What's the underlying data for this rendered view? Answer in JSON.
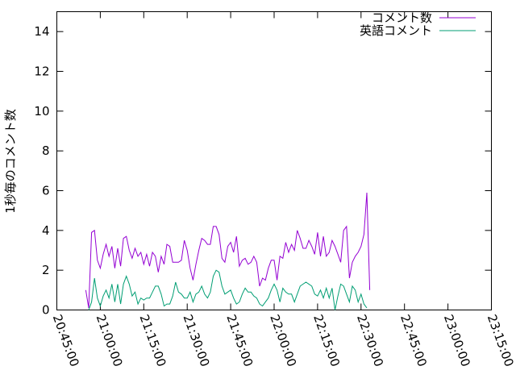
{
  "chart_data": {
    "type": "line",
    "title": "",
    "xlabel": "",
    "ylabel": "1秒毎のコメント数",
    "x_ticks": [
      "20:45:00",
      "21:00:00",
      "21:15:00",
      "21:30:00",
      "21:45:00",
      "22:00:00",
      "22:15:00",
      "22:30:00",
      "22:45:00",
      "23:00:00",
      "23:15:00"
    ],
    "x_start_minutes": 1245,
    "x_step_minutes": 15,
    "x_range_minutes": [
      1245,
      1395
    ],
    "ylim": [
      0,
      15
    ],
    "y_ticks": [
      0,
      2,
      4,
      6,
      8,
      10,
      12,
      14
    ],
    "legend_position": "top-right",
    "grid": false,
    "series": [
      {
        "name": "コメント数",
        "color": "#9400d3",
        "points": [
          [
            1255,
            1.0
          ],
          [
            1256,
            0.1
          ],
          [
            1257,
            3.9
          ],
          [
            1258,
            4.0
          ],
          [
            1259,
            2.5
          ],
          [
            1260,
            2.1
          ],
          [
            1261,
            2.8
          ],
          [
            1262,
            3.3
          ],
          [
            1263,
            2.7
          ],
          [
            1264,
            3.2
          ],
          [
            1265,
            2.1
          ],
          [
            1266,
            3.1
          ],
          [
            1267,
            2.2
          ],
          [
            1268,
            3.6
          ],
          [
            1269,
            3.7
          ],
          [
            1270,
            3.0
          ],
          [
            1271,
            2.6
          ],
          [
            1272,
            3.1
          ],
          [
            1273,
            2.7
          ],
          [
            1274,
            2.9
          ],
          [
            1275,
            2.3
          ],
          [
            1276,
            2.8
          ],
          [
            1277,
            2.2
          ],
          [
            1278,
            2.9
          ],
          [
            1279,
            2.7
          ],
          [
            1280,
            1.9
          ],
          [
            1281,
            2.7
          ],
          [
            1282,
            2.3
          ],
          [
            1283,
            3.3
          ],
          [
            1284,
            3.2
          ],
          [
            1285,
            2.4
          ],
          [
            1286,
            2.4
          ],
          [
            1287,
            2.4
          ],
          [
            1288,
            2.5
          ],
          [
            1289,
            3.5
          ],
          [
            1290,
            3.0
          ],
          [
            1291,
            2.1
          ],
          [
            1292,
            1.5
          ],
          [
            1293,
            2.3
          ],
          [
            1294,
            3.0
          ],
          [
            1295,
            3.6
          ],
          [
            1296,
            3.5
          ],
          [
            1297,
            3.3
          ],
          [
            1298,
            3.3
          ],
          [
            1299,
            4.2
          ],
          [
            1300,
            4.2
          ],
          [
            1301,
            3.8
          ],
          [
            1302,
            2.6
          ],
          [
            1303,
            2.4
          ],
          [
            1304,
            3.2
          ],
          [
            1305,
            3.4
          ],
          [
            1306,
            2.9
          ],
          [
            1307,
            3.7
          ],
          [
            1308,
            2.2
          ],
          [
            1309,
            2.5
          ],
          [
            1310,
            2.6
          ],
          [
            1311,
            2.3
          ],
          [
            1312,
            2.4
          ],
          [
            1313,
            2.7
          ],
          [
            1314,
            2.4
          ],
          [
            1315,
            1.2
          ],
          [
            1316,
            1.6
          ],
          [
            1317,
            1.5
          ],
          [
            1318,
            2.1
          ],
          [
            1319,
            2.5
          ],
          [
            1320,
            2.5
          ],
          [
            1321,
            1.5
          ],
          [
            1322,
            2.7
          ],
          [
            1323,
            2.6
          ],
          [
            1324,
            3.4
          ],
          [
            1325,
            2.9
          ],
          [
            1326,
            3.3
          ],
          [
            1327,
            3.0
          ],
          [
            1328,
            4.0
          ],
          [
            1329,
            3.6
          ],
          [
            1330,
            3.1
          ],
          [
            1331,
            3.1
          ],
          [
            1332,
            3.5
          ],
          [
            1333,
            3.2
          ],
          [
            1334,
            2.8
          ],
          [
            1335,
            3.9
          ],
          [
            1336,
            2.7
          ],
          [
            1337,
            3.7
          ],
          [
            1338,
            2.7
          ],
          [
            1339,
            2.9
          ],
          [
            1340,
            3.5
          ],
          [
            1341,
            3.2
          ],
          [
            1342,
            2.8
          ],
          [
            1343,
            2.4
          ],
          [
            1344,
            4.0
          ],
          [
            1345,
            4.2
          ],
          [
            1346,
            1.6
          ],
          [
            1347,
            2.4
          ],
          [
            1348,
            2.7
          ],
          [
            1349,
            2.9
          ],
          [
            1350,
            3.2
          ],
          [
            1351,
            3.8
          ],
          [
            1352,
            5.9
          ],
          [
            1353,
            1.0
          ]
        ]
      },
      {
        "name": "英語コメント",
        "color": "#009e73",
        "points": [
          [
            1256,
            0.0
          ],
          [
            1257,
            0.4
          ],
          [
            1258,
            1.6
          ],
          [
            1259,
            0.6
          ],
          [
            1260,
            0.2
          ],
          [
            1261,
            0.7
          ],
          [
            1262,
            1.0
          ],
          [
            1263,
            0.6
          ],
          [
            1264,
            1.3
          ],
          [
            1265,
            0.4
          ],
          [
            1266,
            1.3
          ],
          [
            1267,
            0.3
          ],
          [
            1268,
            1.3
          ],
          [
            1269,
            1.7
          ],
          [
            1270,
            1.3
          ],
          [
            1271,
            0.7
          ],
          [
            1272,
            0.9
          ],
          [
            1273,
            0.3
          ],
          [
            1274,
            0.6
          ],
          [
            1275,
            0.5
          ],
          [
            1276,
            0.6
          ],
          [
            1277,
            0.6
          ],
          [
            1278,
            0.9
          ],
          [
            1279,
            1.2
          ],
          [
            1280,
            1.2
          ],
          [
            1281,
            0.8
          ],
          [
            1282,
            0.2
          ],
          [
            1283,
            0.3
          ],
          [
            1284,
            0.3
          ],
          [
            1285,
            0.7
          ],
          [
            1286,
            1.4
          ],
          [
            1287,
            0.9
          ],
          [
            1288,
            0.8
          ],
          [
            1289,
            0.6
          ],
          [
            1290,
            0.6
          ],
          [
            1291,
            0.9
          ],
          [
            1292,
            0.4
          ],
          [
            1293,
            0.8
          ],
          [
            1294,
            0.9
          ],
          [
            1295,
            1.2
          ],
          [
            1296,
            0.8
          ],
          [
            1297,
            0.6
          ],
          [
            1298,
            0.9
          ],
          [
            1299,
            1.7
          ],
          [
            1300,
            2.0
          ],
          [
            1301,
            1.9
          ],
          [
            1302,
            1.2
          ],
          [
            1303,
            0.8
          ],
          [
            1304,
            0.9
          ],
          [
            1305,
            1.0
          ],
          [
            1306,
            0.6
          ],
          [
            1307,
            0.3
          ],
          [
            1308,
            0.4
          ],
          [
            1309,
            0.8
          ],
          [
            1310,
            1.1
          ],
          [
            1311,
            0.9
          ],
          [
            1312,
            0.9
          ],
          [
            1313,
            0.7
          ],
          [
            1314,
            0.6
          ],
          [
            1315,
            0.3
          ],
          [
            1316,
            0.2
          ],
          [
            1317,
            0.4
          ],
          [
            1318,
            0.6
          ],
          [
            1319,
            1.0
          ],
          [
            1320,
            1.3
          ],
          [
            1321,
            1.0
          ],
          [
            1322,
            0.4
          ],
          [
            1323,
            1.1
          ],
          [
            1324,
            0.9
          ],
          [
            1325,
            0.8
          ],
          [
            1326,
            0.8
          ],
          [
            1327,
            0.4
          ],
          [
            1328,
            0.8
          ],
          [
            1329,
            1.2
          ],
          [
            1330,
            1.3
          ],
          [
            1331,
            1.4
          ],
          [
            1332,
            1.3
          ],
          [
            1333,
            1.2
          ],
          [
            1334,
            0.8
          ],
          [
            1335,
            0.7
          ],
          [
            1336,
            1.0
          ],
          [
            1337,
            0.6
          ],
          [
            1338,
            1.1
          ],
          [
            1339,
            0.6
          ],
          [
            1340,
            1.1
          ],
          [
            1341,
            0.0
          ],
          [
            1342,
            0.7
          ],
          [
            1343,
            1.3
          ],
          [
            1344,
            1.2
          ],
          [
            1345,
            0.8
          ],
          [
            1346,
            0.4
          ],
          [
            1347,
            1.2
          ],
          [
            1348,
            1.0
          ],
          [
            1349,
            0.4
          ],
          [
            1350,
            0.8
          ],
          [
            1351,
            0.3
          ],
          [
            1352,
            0.1
          ]
        ]
      }
    ]
  }
}
